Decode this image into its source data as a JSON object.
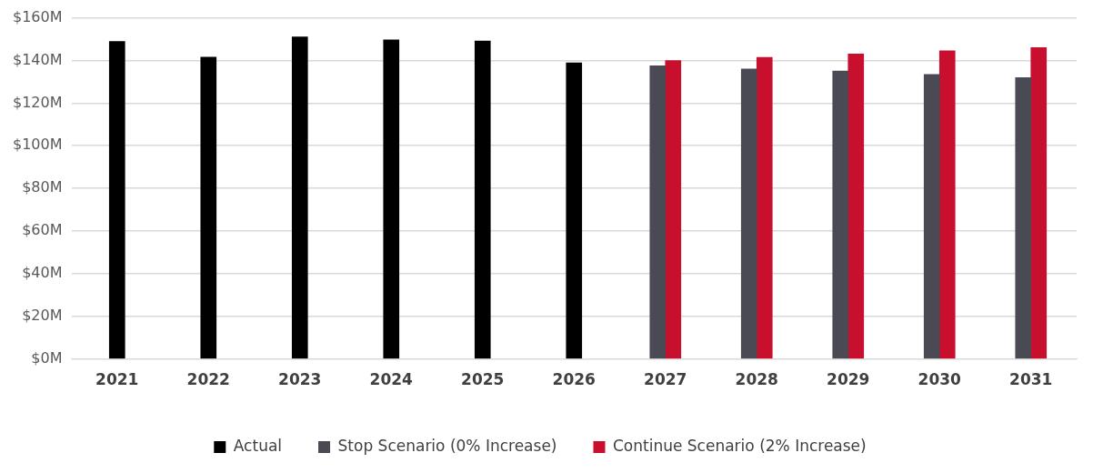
{
  "chart_data": {
    "type": "bar",
    "categories": [
      "2021",
      "2022",
      "2023",
      "2024",
      "2025",
      "2026",
      "2027",
      "2028",
      "2029",
      "2030",
      "2031"
    ],
    "series": [
      {
        "name": "Actual",
        "color": "#000000",
        "values": [
          148.9,
          141.6,
          151.1,
          149.7,
          149.1,
          138.9,
          null,
          null,
          null,
          null,
          null
        ]
      },
      {
        "name": "Stop Scenario (0% Increase)",
        "color": "#4a4a55",
        "values": [
          null,
          null,
          null,
          null,
          null,
          null,
          137.5,
          136,
          135,
          133.5,
          132
        ]
      },
      {
        "name": "Continue Scenario (2% Increase)",
        "color": "#c8102e",
        "values": [
          null,
          null,
          null,
          null,
          null,
          null,
          140,
          141.5,
          143,
          144.5,
          146
        ]
      }
    ],
    "ylim": [
      0,
      160
    ],
    "yticks": [
      {
        "value": 0,
        "label": "$0M"
      },
      {
        "value": 20,
        "label": "$20M"
      },
      {
        "value": 40,
        "label": "$40M"
      },
      {
        "value": 60,
        "label": "$60M"
      },
      {
        "value": 80,
        "label": "$80M"
      },
      {
        "value": 100,
        "label": "$100M"
      },
      {
        "value": 120,
        "label": "$120M"
      },
      {
        "value": 140,
        "label": "$140M"
      },
      {
        "value": 160,
        "label": "$160M"
      }
    ],
    "grid": "y",
    "legend": "bottom"
  }
}
